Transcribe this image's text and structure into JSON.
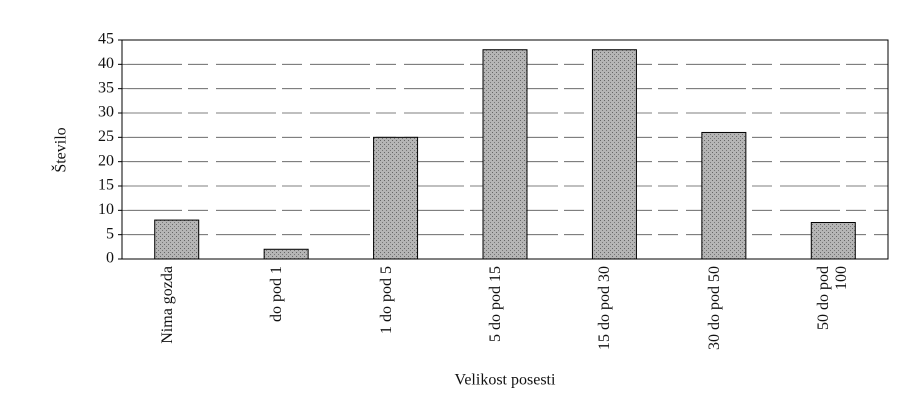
{
  "chart_data": {
    "type": "bar",
    "categories": [
      "Nima gozda",
      "do pod 1",
      "1 do pod 5",
      "5 do pod 15",
      "15 do pod 30",
      "30 do pod 50",
      "50 do pod 100"
    ],
    "values": [
      8,
      2,
      25,
      43,
      43,
      26,
      7.5
    ],
    "color": "#a9a9a9",
    "ylim": [
      0,
      45
    ],
    "yticks": [
      0,
      5,
      10,
      15,
      20,
      25,
      30,
      35,
      40,
      45
    ],
    "grid": true,
    "y_label": "Število",
    "x_label": "Velikost posesti"
  }
}
